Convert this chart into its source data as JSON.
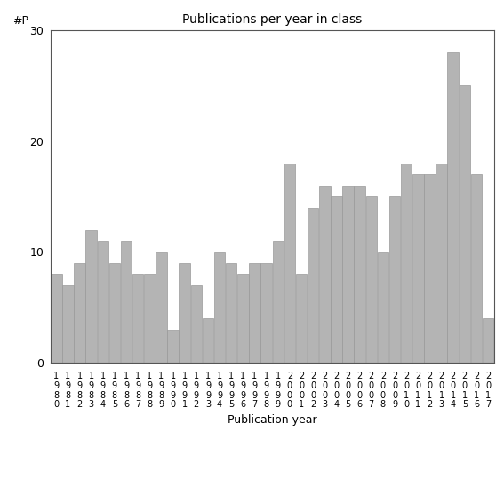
{
  "title": "Publications per year in class",
  "xlabel": "Publication year",
  "ylabel": "#P",
  "categories": [
    "1980",
    "1981",
    "1982",
    "1983",
    "1984",
    "1985",
    "1986",
    "1987",
    "1988",
    "1989",
    "1990",
    "1991",
    "1992",
    "1993",
    "1994",
    "1995",
    "1996",
    "1997",
    "1998",
    "1999",
    "2000",
    "2001",
    "2002",
    "2003",
    "2004",
    "2005",
    "2006",
    "2007",
    "2008",
    "2009",
    "2010",
    "2011",
    "2012",
    "2013",
    "2014",
    "2015",
    "2016",
    "2017"
  ],
  "values": [
    8,
    7,
    9,
    12,
    11,
    9,
    11,
    8,
    8,
    10,
    3,
    9,
    7,
    4,
    10,
    9,
    8,
    9,
    9,
    11,
    18,
    8,
    14,
    16,
    15,
    16,
    16,
    15,
    10,
    15,
    18,
    17,
    17,
    18,
    28,
    25,
    17,
    4
  ],
  "bar_color": "#b4b4b4",
  "bar_edgecolor": "#999999",
  "ylim": [
    0,
    30
  ],
  "yticks": [
    0,
    10,
    20,
    30
  ],
  "background_color": "#ffffff",
  "title_fontsize": 10,
  "label_fontsize": 9,
  "tick_fontsize": 7
}
